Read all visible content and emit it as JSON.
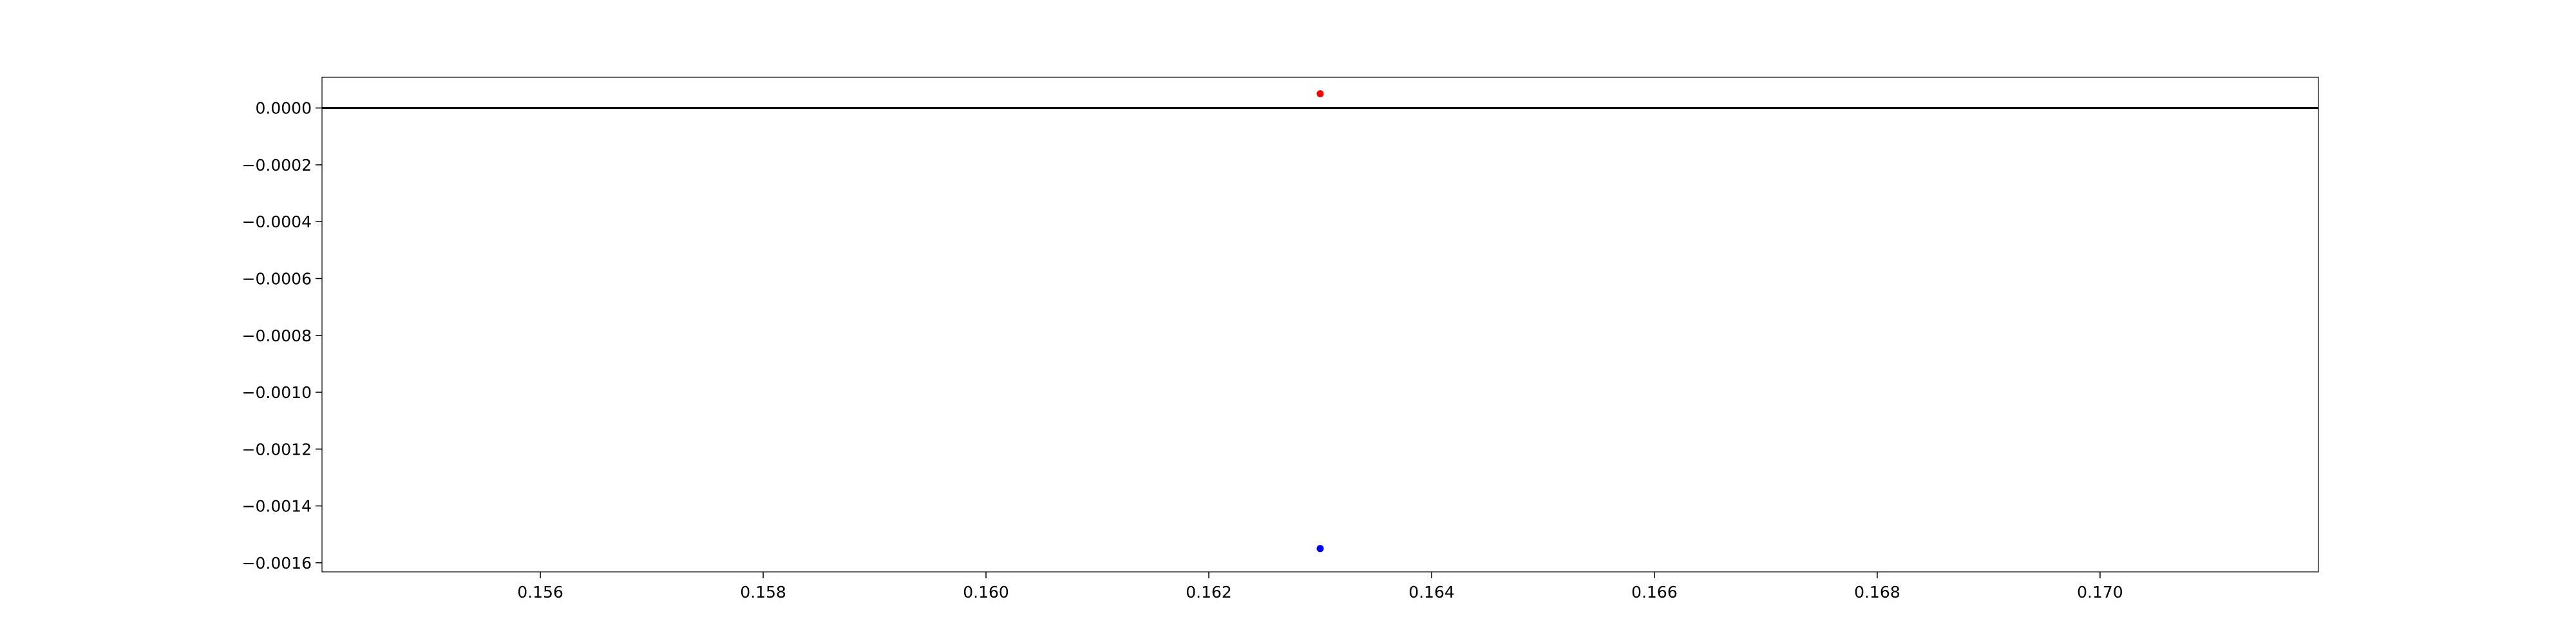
{
  "chart_data": {
    "type": "scatter",
    "title": "",
    "xlabel": "",
    "ylabel": "",
    "xlim": [
      0.15404,
      0.17196
    ],
    "ylim": [
      -0.001632,
      0.000108
    ],
    "grid": false,
    "x_ticks": [
      0.156,
      0.158,
      0.16,
      0.162,
      0.164,
      0.166,
      0.168,
      0.17
    ],
    "x_tick_labels": [
      "0.156",
      "0.158",
      "0.160",
      "0.162",
      "0.164",
      "0.166",
      "0.168",
      "0.170"
    ],
    "y_ticks": [
      0.0,
      -0.0002,
      -0.0004,
      -0.0006,
      -0.0008,
      -0.001,
      -0.0012,
      -0.0014,
      -0.0016
    ],
    "y_tick_labels": [
      "0.0000",
      "−0.0002",
      "−0.0004",
      "−0.0006",
      "−0.0008",
      "−0.0010",
      "−0.0012",
      "−0.0014",
      "−0.0016"
    ],
    "reference_lines": [
      {
        "orientation": "horizontal",
        "y": 0.0,
        "color": "#000000"
      }
    ],
    "series": [
      {
        "x": [
          0.163
        ],
        "y": [
          5e-05
        ],
        "color": "#ff0000"
      },
      {
        "x": [
          0.163
        ],
        "y": [
          -0.00155
        ],
        "color": "#0000ff"
      }
    ]
  }
}
